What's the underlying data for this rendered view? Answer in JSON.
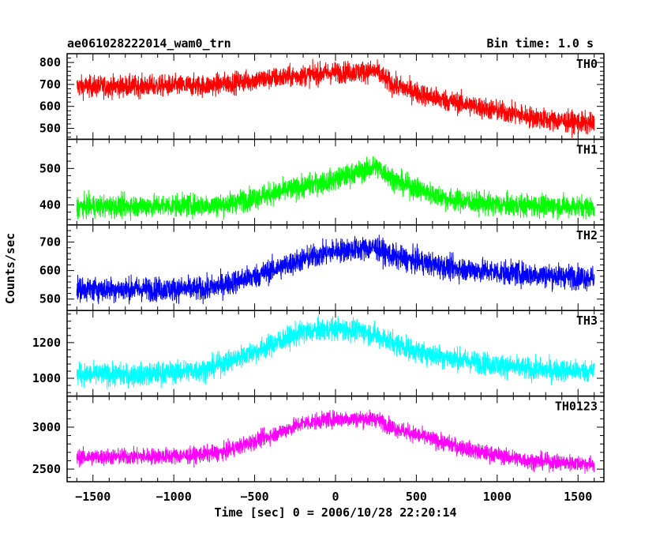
{
  "header": {
    "title": "ae061028222014_wam0_trn",
    "bin_time": "Bin time: 1.0 s"
  },
  "chart_data": {
    "type": "line",
    "title": "ae061028222014_wam0_trn",
    "xlabel": "Time [sec] 0 = 2006/10/28 22:20:14",
    "ylabel": "Counts/sec",
    "xlim": [
      -1660,
      1660
    ],
    "x_ticks": [
      -1500,
      -1000,
      -500,
      0,
      500,
      1000,
      1500
    ],
    "x_tick_labels": [
      "−1500",
      "−1000",
      "−500",
      "0",
      "500",
      "1000",
      "1500"
    ],
    "x_range_data": [
      -1600,
      1600
    ],
    "grid": false,
    "panels": [
      {
        "name": "TH0",
        "color": "#ff0000",
        "ylim": [
          450,
          840
        ],
        "y_ticks": [
          500,
          600,
          700,
          800
        ],
        "noise": 35,
        "profile": [
          [
            -1600,
            690
          ],
          [
            -800,
            695
          ],
          [
            -500,
            720
          ],
          [
            0,
            755
          ],
          [
            250,
            760
          ],
          [
            350,
            700
          ],
          [
            600,
            640
          ],
          [
            1000,
            580
          ],
          [
            1300,
            540
          ],
          [
            1600,
            520
          ]
        ]
      },
      {
        "name": "TH1",
        "color": "#00ff00",
        "ylim": [
          345,
          580
        ],
        "y_ticks": [
          400,
          500
        ],
        "noise": 22,
        "profile": [
          [
            -1600,
            395
          ],
          [
            -700,
            400
          ],
          [
            -400,
            430
          ],
          [
            0,
            470
          ],
          [
            250,
            505
          ],
          [
            400,
            460
          ],
          [
            700,
            415
          ],
          [
            1000,
            400
          ],
          [
            1600,
            395
          ]
        ]
      },
      {
        "name": "TH2",
        "color": "#0000ff",
        "ylim": [
          460,
          760
        ],
        "y_ticks": [
          500,
          600,
          700
        ],
        "noise": 30,
        "profile": [
          [
            -1600,
            535
          ],
          [
            -800,
            535
          ],
          [
            -500,
            580
          ],
          [
            -200,
            640
          ],
          [
            0,
            670
          ],
          [
            250,
            680
          ],
          [
            350,
            650
          ],
          [
            700,
            610
          ],
          [
            1100,
            590
          ],
          [
            1600,
            575
          ]
        ]
      },
      {
        "name": "TH3",
        "color": "#00ffff",
        "ylim": [
          900,
          1380
        ],
        "y_ticks": [
          1000,
          1200
        ],
        "noise": 45,
        "profile": [
          [
            -1600,
            1020
          ],
          [
            -1200,
            1020
          ],
          [
            -800,
            1050
          ],
          [
            -500,
            1150
          ],
          [
            -200,
            1260
          ],
          [
            0,
            1280
          ],
          [
            200,
            1260
          ],
          [
            500,
            1150
          ],
          [
            800,
            1100
          ],
          [
            1200,
            1050
          ],
          [
            1600,
            1040
          ]
        ]
      },
      {
        "name": "TH0123",
        "color": "#ff00ff",
        "ylim": [
          2350,
          3370
        ],
        "y_ticks": [
          2500,
          3000
        ],
        "noise": 70,
        "profile": [
          [
            -1600,
            2640
          ],
          [
            -900,
            2660
          ],
          [
            -700,
            2700
          ],
          [
            -400,
            2900
          ],
          [
            -200,
            3050
          ],
          [
            0,
            3100
          ],
          [
            250,
            3100
          ],
          [
            350,
            3000
          ],
          [
            600,
            2850
          ],
          [
            900,
            2700
          ],
          [
            1200,
            2600
          ],
          [
            1600,
            2560
          ]
        ]
      }
    ]
  }
}
